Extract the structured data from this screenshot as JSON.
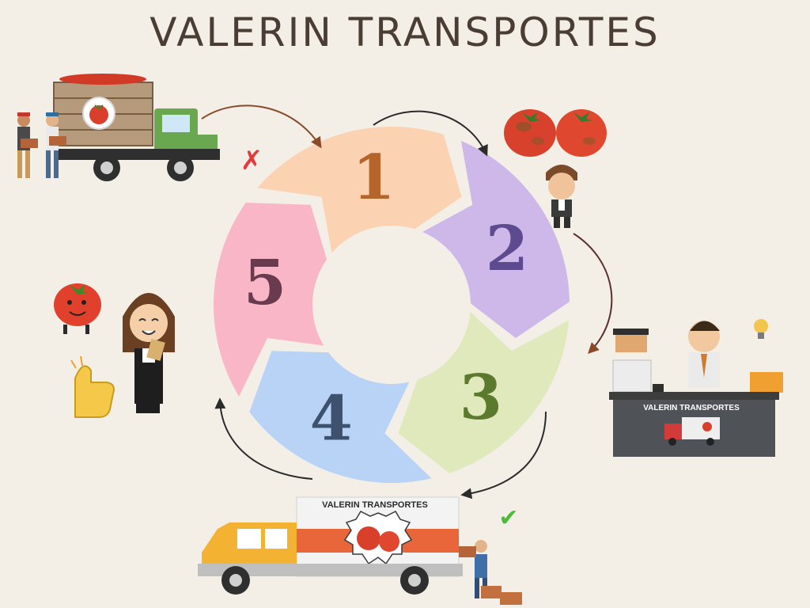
{
  "title": "VALERIN TRANSPORTES",
  "steps": [
    {
      "number": "1",
      "color": "#fbd2b2",
      "text_color": "#b5642a"
    },
    {
      "number": "2",
      "color": "#cdb8e9",
      "text_color": "#5e4a8e"
    },
    {
      "number": "3",
      "color": "#dfe9bb",
      "text_color": "#5b7a2e"
    },
    {
      "number": "4",
      "color": "#b9d3f6",
      "text_color": "#3e5270"
    },
    {
      "number": "5",
      "color": "#f9b6c7",
      "text_color": "#6a3a4e"
    }
  ],
  "desk_sign": "VALERIN TRANSPORTES",
  "truck_sign": "VALERIN TRANSPORTES",
  "marks": {
    "reject": "✗",
    "accept": "✔"
  }
}
